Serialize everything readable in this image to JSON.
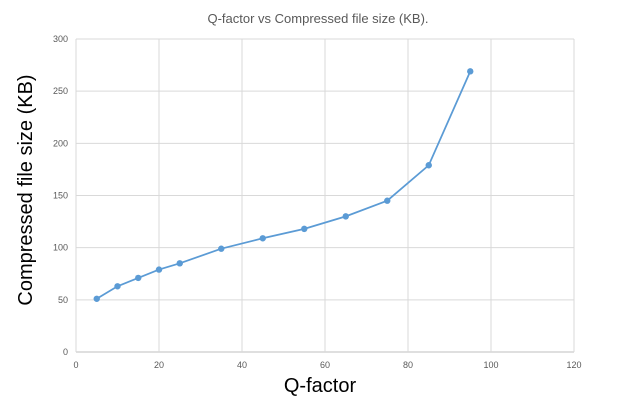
{
  "chart_data": {
    "type": "line",
    "title": "Q-factor vs Compressed  file size (KB).",
    "xlabel": "Q-factor",
    "ylabel": "Compressed file size (KB)",
    "xlim": [
      0,
      120
    ],
    "ylim": [
      0,
      300
    ],
    "xticks": [
      0,
      20,
      40,
      60,
      80,
      100,
      120
    ],
    "yticks": [
      0,
      50,
      100,
      150,
      200,
      250,
      300
    ],
    "grid": true,
    "legend": "none",
    "series": [
      {
        "color": "#5b9bd5",
        "x": [
          5,
          10,
          15,
          20,
          25,
          35,
          45,
          55,
          65,
          75,
          85,
          95
        ],
        "y": [
          51,
          63,
          71,
          79,
          85,
          99,
          109,
          118,
          130,
          145,
          179,
          269
        ]
      }
    ]
  }
}
